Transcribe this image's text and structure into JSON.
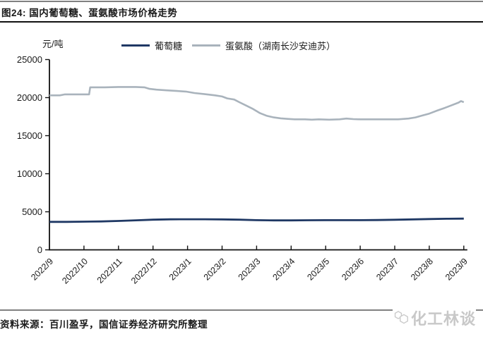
{
  "header": {
    "title": "图24: 国内葡萄糖、蛋氨酸市场价格走势"
  },
  "chart_data": {
    "type": "line",
    "title": "国内葡萄糖、蛋氨酸市场价格走势",
    "ylabel_unit": "元/吨",
    "ylim": [
      0,
      25000
    ],
    "y_ticks": [
      0,
      5000,
      10000,
      15000,
      20000,
      25000
    ],
    "x_labels": [
      "2022/9",
      "2022/10",
      "2022/11",
      "2022/12",
      "2023/1",
      "2023/2",
      "2023/3",
      "2023/4",
      "2023/5",
      "2023/6",
      "2023/7",
      "2023/8",
      "2023/9"
    ],
    "x_range": [
      0,
      12
    ],
    "grid": false,
    "legend_position": "top",
    "legend": [
      {
        "name": "葡萄糖",
        "color": "#1F3864"
      },
      {
        "name": "蛋氨酸（湖南长沙安迪苏）",
        "color": "#A9B3BC"
      }
    ],
    "series": [
      {
        "name": "葡萄糖",
        "color": "#1F3864",
        "stroke_width": 2.8,
        "points": [
          [
            0,
            3680
          ],
          [
            0.5,
            3680
          ],
          [
            1,
            3700
          ],
          [
            1.5,
            3730
          ],
          [
            2,
            3800
          ],
          [
            2.5,
            3880
          ],
          [
            3,
            3960
          ],
          [
            3.5,
            4010
          ],
          [
            4,
            4020
          ],
          [
            4.5,
            4020
          ],
          [
            5,
            4000
          ],
          [
            5.5,
            3960
          ],
          [
            6,
            3900
          ],
          [
            6.5,
            3870
          ],
          [
            7,
            3870
          ],
          [
            7.5,
            3890
          ],
          [
            8,
            3900
          ],
          [
            8.5,
            3900
          ],
          [
            9,
            3900
          ],
          [
            9.5,
            3920
          ],
          [
            10,
            3950
          ],
          [
            10.5,
            4000
          ],
          [
            11,
            4050
          ],
          [
            11.5,
            4080
          ],
          [
            12,
            4100
          ]
        ]
      },
      {
        "name": "蛋氨酸（湖南长沙安迪苏）",
        "color": "#A9B3BC",
        "stroke_width": 2.6,
        "points": [
          [
            0,
            20300
          ],
          [
            0.3,
            20300
          ],
          [
            0.45,
            20430
          ],
          [
            0.9,
            20430
          ],
          [
            1.15,
            20430
          ],
          [
            1.18,
            21350
          ],
          [
            1.6,
            21350
          ],
          [
            2,
            21400
          ],
          [
            2.5,
            21400
          ],
          [
            2.75,
            21350
          ],
          [
            2.9,
            21150
          ],
          [
            3.1,
            21050
          ],
          [
            3.4,
            20950
          ],
          [
            3.7,
            20870
          ],
          [
            3.95,
            20800
          ],
          [
            4.2,
            20600
          ],
          [
            4.5,
            20450
          ],
          [
            4.8,
            20300
          ],
          [
            5,
            20150
          ],
          [
            5.15,
            19900
          ],
          [
            5.35,
            19750
          ],
          [
            5.5,
            19400
          ],
          [
            5.7,
            18950
          ],
          [
            5.9,
            18500
          ],
          [
            6.1,
            17950
          ],
          [
            6.3,
            17600
          ],
          [
            6.5,
            17400
          ],
          [
            6.7,
            17280
          ],
          [
            6.9,
            17200
          ],
          [
            7.1,
            17150
          ],
          [
            7.4,
            17150
          ],
          [
            7.6,
            17100
          ],
          [
            7.8,
            17150
          ],
          [
            8.1,
            17100
          ],
          [
            8.4,
            17150
          ],
          [
            8.6,
            17250
          ],
          [
            8.8,
            17180
          ],
          [
            9,
            17150
          ],
          [
            9.4,
            17150
          ],
          [
            9.8,
            17150
          ],
          [
            10.1,
            17150
          ],
          [
            10.4,
            17250
          ],
          [
            10.6,
            17400
          ],
          [
            10.8,
            17650
          ],
          [
            11,
            17900
          ],
          [
            11.2,
            18250
          ],
          [
            11.45,
            18650
          ],
          [
            11.65,
            19000
          ],
          [
            11.85,
            19350
          ],
          [
            11.92,
            19550
          ],
          [
            12,
            19400
          ]
        ]
      }
    ]
  },
  "footer": {
    "source": "资料来源：百川盈孚，国信证券经济研究所整理",
    "logo_text": "化工林谈"
  }
}
